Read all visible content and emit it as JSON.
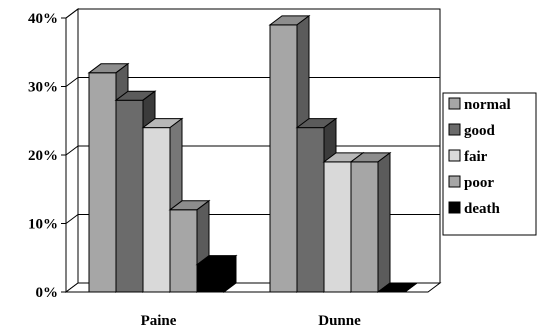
{
  "chart_data": {
    "type": "bar",
    "categories": [
      "Paine",
      "Dunne"
    ],
    "series": [
      {
        "name": "normal",
        "values": [
          32,
          39
        ],
        "color": "#a6a6a6"
      },
      {
        "name": "good",
        "values": [
          28,
          24
        ],
        "color": "#6b6b6b"
      },
      {
        "name": "fair",
        "values": [
          24,
          19
        ],
        "color": "#d9d9d9"
      },
      {
        "name": "poor",
        "values": [
          12,
          19
        ],
        "color": "#a6a6a6"
      },
      {
        "name": "death",
        "values": [
          4,
          0
        ],
        "color": "#000000"
      }
    ],
    "yticks": [
      "0%",
      "10%",
      "20%",
      "30%",
      "40%"
    ],
    "ylim": [
      0,
      40
    ],
    "legend_position": "right",
    "grid": true,
    "style": "3d-column"
  }
}
